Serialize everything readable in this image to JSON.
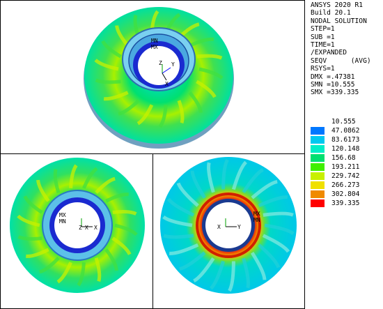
{
  "info": {
    "lines": [
      "ANSYS 2020 R1",
      "Build 20.1",
      "NODAL SOLUTION",
      "STEP=1",
      "SUB =1",
      "TIME=1",
      "/EXPANDED",
      "SEQV      (AVG)",
      "RSYS=1",
      "DMX =.47381",
      "SMN =10.555",
      "SMX =339.335"
    ]
  },
  "legend": {
    "values": [
      "10.555",
      "47.0862",
      "83.6173",
      "120.148",
      "156.68",
      "193.211",
      "229.742",
      "266.273",
      "302.804",
      "339.335"
    ],
    "colors": [
      "#0000ff",
      "#0077ff",
      "#00c8f0",
      "#00eec8",
      "#00e070",
      "#40f000",
      "#c8f000",
      "#f0e000",
      "#f08a00",
      "#ff0000"
    ]
  },
  "views": {
    "top": {
      "mn": "MN",
      "mx": "MX",
      "axis_y": "Y",
      "axis_z": "Z",
      "axis_x": "X"
    },
    "bottom_left": {
      "mx": "MX",
      "mn": "MN",
      "axis_z": "Z",
      "axis_x": "X",
      "axis_x2": "X"
    },
    "bottom_right": {
      "mx": "MX",
      "mn": "MN",
      "axis_x": "X",
      "axis_y": "Y"
    }
  }
}
